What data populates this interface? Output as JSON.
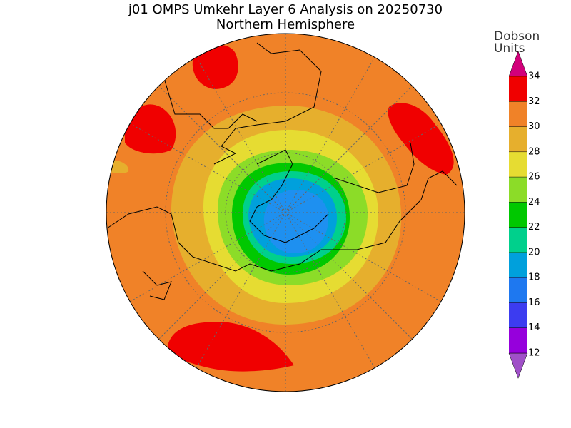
{
  "header": {
    "title": "j01 OMPS Umkehr Layer 6 Analysis on 20250730",
    "subtitle": "Northern Hemisphere"
  },
  "colorbar": {
    "label_line1": "Dobson",
    "label_line2": "Units",
    "ticks": [
      12,
      14,
      16,
      18,
      20,
      22,
      24,
      26,
      28,
      30,
      32,
      34
    ],
    "colors": [
      "#9600dc",
      "#3c3cf0",
      "#1e78f0",
      "#00a0dc",
      "#00d08c",
      "#00c800",
      "#8cdc28",
      "#e6dc32",
      "#e6af2d",
      "#f08228",
      "#f00000"
    ],
    "under_color": "#a050c8",
    "over_color": "#d2007a"
  }
}
